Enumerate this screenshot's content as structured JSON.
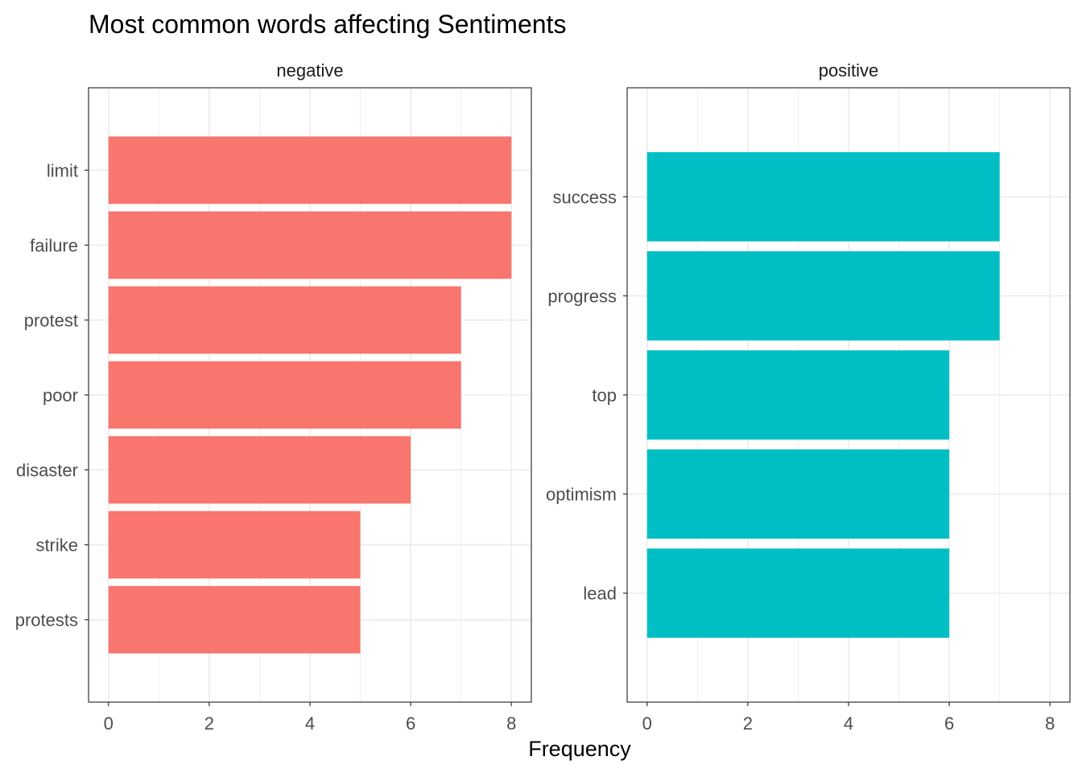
{
  "chart_data": {
    "type": "bar",
    "orientation": "horizontal",
    "title": "Most common words affecting Sentiments",
    "xlabel": "Frequency",
    "ylabel": "",
    "xlim": [
      0,
      8
    ],
    "x_ticks": [
      "0",
      "2",
      "4",
      "6",
      "8"
    ],
    "grid": true,
    "legend": "none",
    "panels": [
      {
        "name": "negative",
        "color": "#F8766D",
        "categories": [
          "limit",
          "failure",
          "protest",
          "poor",
          "disaster",
          "strike",
          "protests"
        ],
        "values": [
          8,
          8,
          7,
          7,
          6,
          5,
          5
        ]
      },
      {
        "name": "positive",
        "color": "#00BFC4",
        "categories": [
          "success",
          "progress",
          "top",
          "optimism",
          "lead"
        ],
        "values": [
          7,
          7,
          6,
          6,
          6
        ]
      }
    ]
  }
}
